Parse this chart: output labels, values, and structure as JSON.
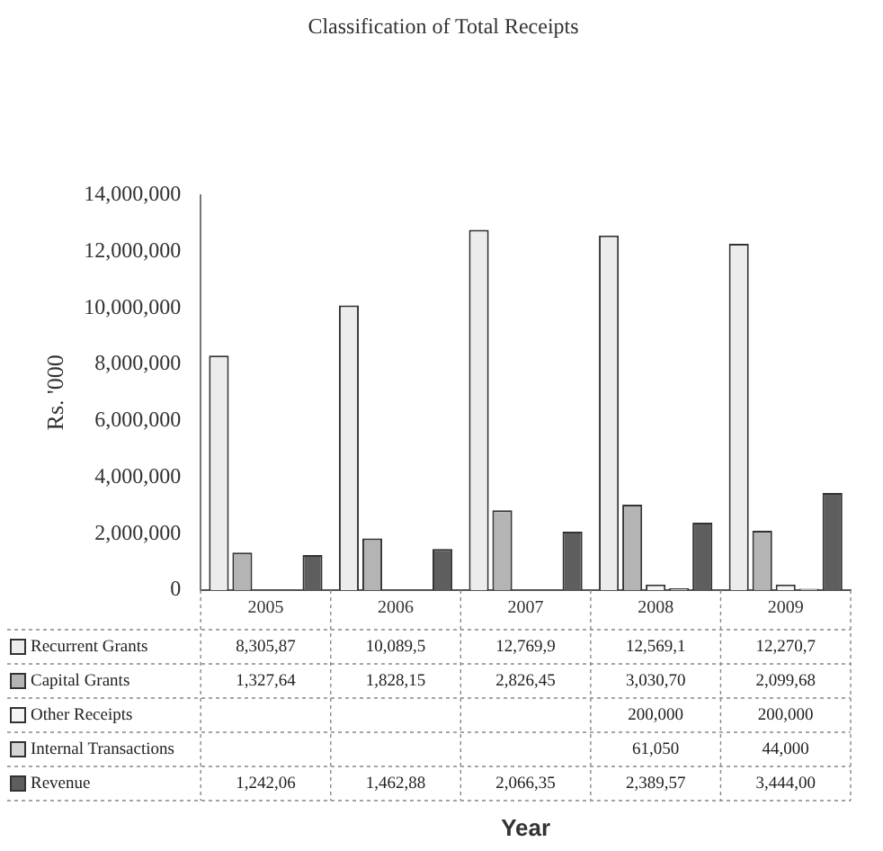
{
  "chart_data": {
    "type": "bar",
    "title": "Classification of Total Receipts",
    "annotations": [
      "Year"
    ],
    "ylabel": "Rs. '000",
    "categories": [
      "2005",
      "2006",
      "2007",
      "2008",
      "2009"
    ],
    "series": [
      {
        "name": "Recurrent Grants",
        "color": "#ececec",
        "values": [
          8310000,
          10090000,
          12770000,
          12570000,
          12270000
        ],
        "value_labels": [
          "8,305,87",
          "10,089,5",
          "12,769,9",
          "12,569,1",
          "12,270,7"
        ]
      },
      {
        "name": "Capital Grants",
        "color": "#b4b4b4",
        "values": [
          1330000,
          1830000,
          2830000,
          3030000,
          2100000
        ],
        "value_labels": [
          "1,327,64",
          "1,828,15",
          "2,826,45",
          "3,030,70",
          "2,099,68"
        ]
      },
      {
        "name": "Other Receipts",
        "color": "#f4f4f4",
        "values": [
          null,
          null,
          null,
          200000,
          200000
        ],
        "value_labels": [
          null,
          null,
          null,
          "200,000",
          "200,000"
        ]
      },
      {
        "name": "Internal Transactions",
        "color": "#d4d4d4",
        "values": [
          null,
          null,
          null,
          61050,
          44000
        ],
        "value_labels": [
          null,
          null,
          null,
          "61,050",
          "44,000"
        ]
      },
      {
        "name": "Revenue",
        "color": "#5e5e5e",
        "values": [
          1240000,
          1460000,
          2070000,
          2390000,
          3440000
        ],
        "value_labels": [
          "1,242,06",
          "1,462,88",
          "2,066,35",
          "2,389,57",
          "3,444,00"
        ]
      }
    ],
    "ylim": [
      0,
      14000000
    ],
    "yticks": [
      {
        "value": 0,
        "label": "0"
      },
      {
        "value": 2000000,
        "label": "2,000,000"
      },
      {
        "value": 4000000,
        "label": "4,000,000"
      },
      {
        "value": 6000000,
        "label": "6,000,000"
      },
      {
        "value": 8000000,
        "label": "8,000,000"
      },
      {
        "value": 10000000,
        "label": "10,000,000"
      },
      {
        "value": 12000000,
        "label": "12,000,000"
      },
      {
        "value": 14000000,
        "label": "14,000,000"
      }
    ],
    "grid": false,
    "legend": "bottom left"
  }
}
